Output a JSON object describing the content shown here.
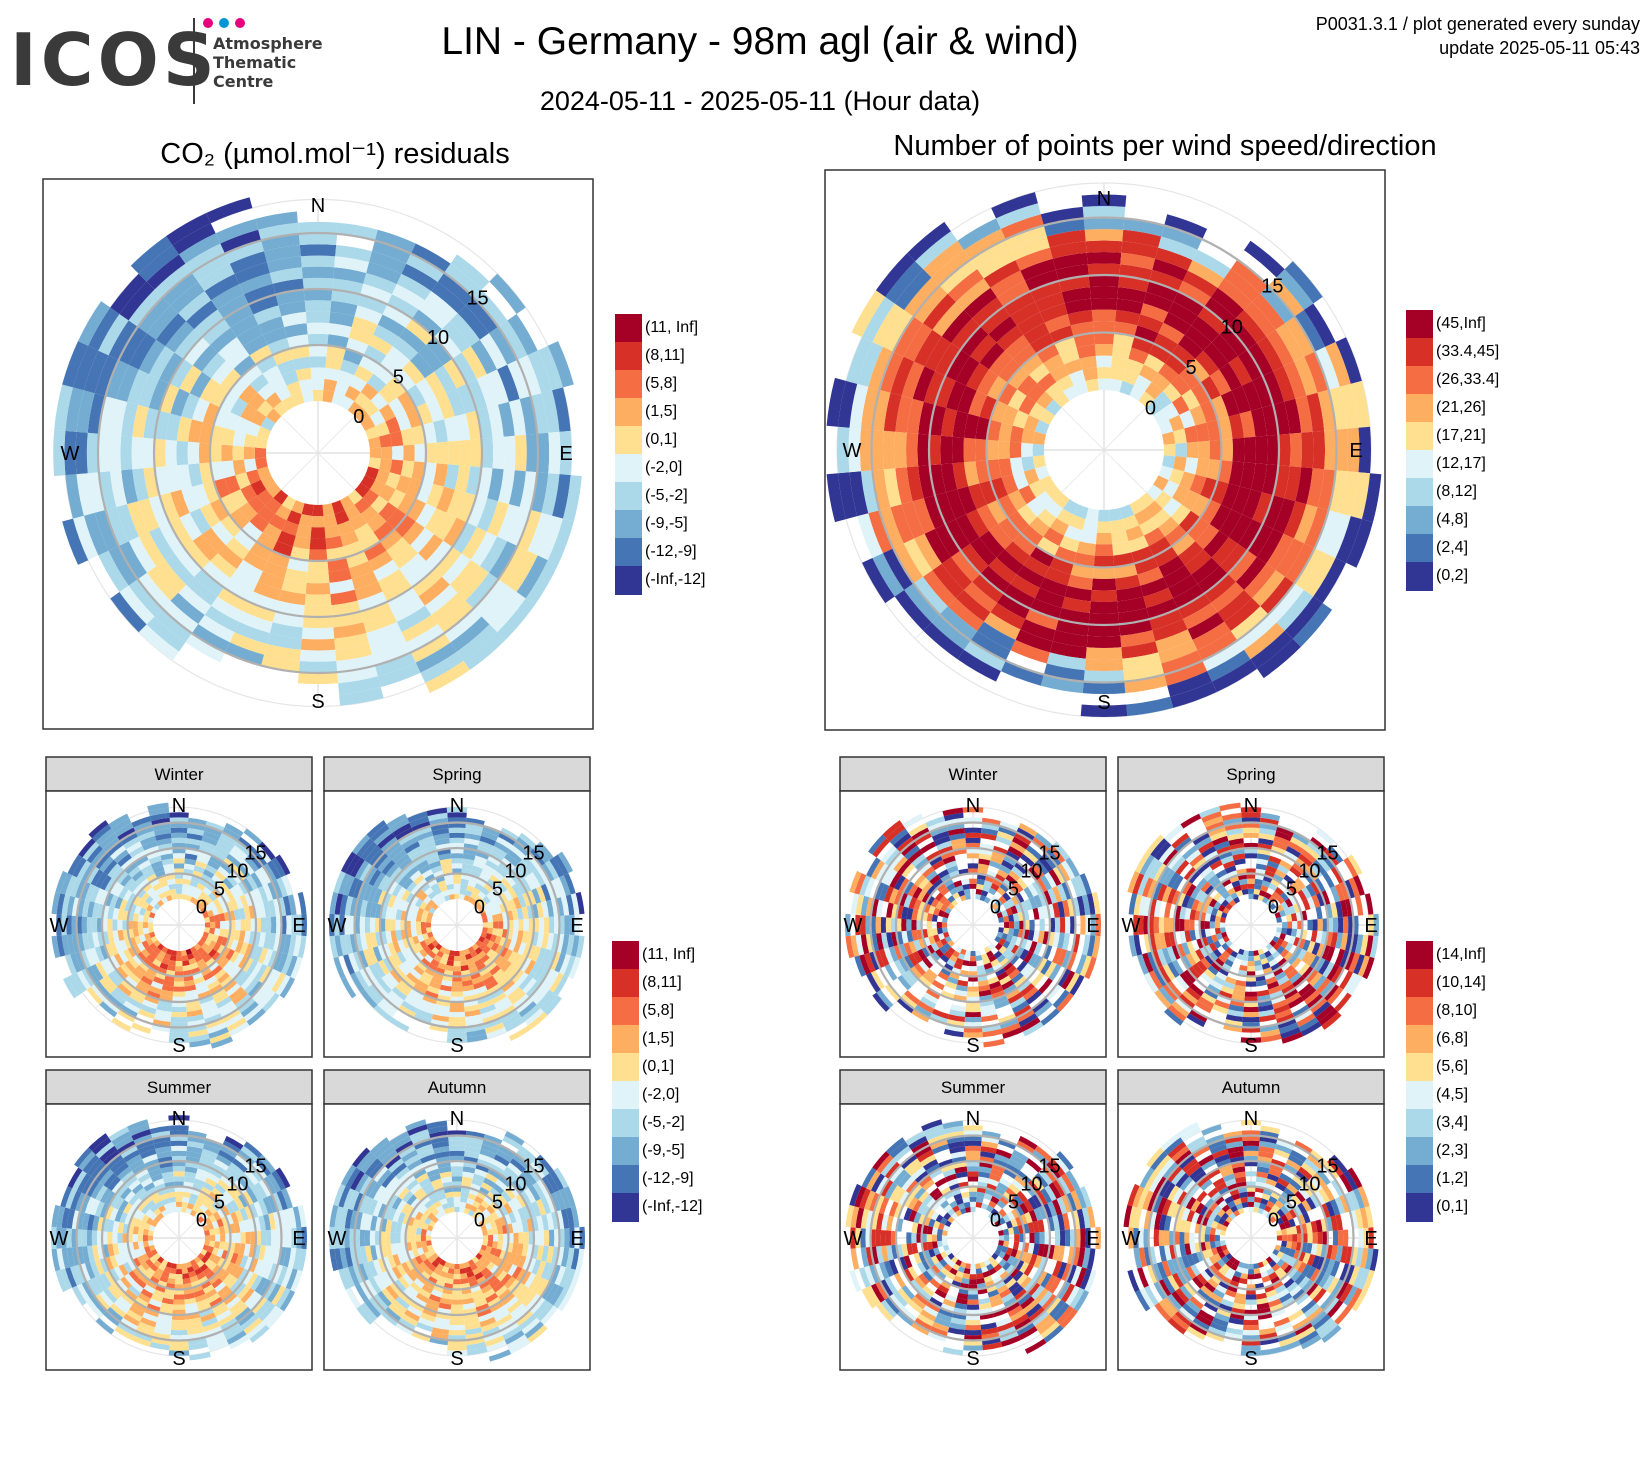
{
  "header": {
    "logo_word": "ICOS",
    "logo_lines": [
      "Atmosphere",
      "Thematic",
      "Centre"
    ],
    "title": "LIN - Germany - 98m agl (air & wind)",
    "subtitle": "2024-05-11 - 2025-05-11 (Hour data)",
    "corner_line1": "P0031.3.1 / plot generated every sunday",
    "corner_line2": "update  2025-05-11 05:43"
  },
  "panels": {
    "left_title": "CO₂ (µmol.mol⁻¹) residuals",
    "right_title": "Number of points per wind speed/direction"
  },
  "colors": {
    "scale": [
      "#a50026",
      "#d73027",
      "#f46d43",
      "#fdae61",
      "#fee090",
      "#e0f3f8",
      "#abd9e9",
      "#74add1",
      "#4575b4",
      "#313695"
    ],
    "grid": "#b0b0b0",
    "strip_bg": "#d9d9d9"
  },
  "chart_data": [
    {
      "id": "co2-residuals-all",
      "type": "heatmap",
      "subtype": "polar wind rose",
      "title": "CO₂ (µmol.mol⁻¹) residuals",
      "compass": [
        "N",
        "E",
        "S",
        "W"
      ],
      "radial_ticks": [
        0,
        5,
        10,
        15
      ],
      "radial_range": [
        0,
        15
      ],
      "legend": [
        "(11, Inf]",
        "(8,11]",
        "(5,8]",
        "(1,5]",
        "(0,1]",
        "(-2,0]",
        "(-5,-2]",
        "(-9,-5]",
        "(-12,-9]",
        "(-Inf,-12]"
      ]
    },
    {
      "id": "points-per-wind-all",
      "type": "heatmap",
      "subtype": "polar wind rose",
      "title": "Number of points per wind speed/direction",
      "compass": [
        "N",
        "E",
        "S",
        "W"
      ],
      "radial_ticks": [
        0,
        5,
        10,
        15
      ],
      "radial_range": [
        0,
        15
      ],
      "legend": [
        "(45,Inf]",
        "(33.4,45]",
        "(26,33.4]",
        "(21,26]",
        "(17,21]",
        "(12,17]",
        "(8,12]",
        "(4,8]",
        "(2,4]",
        "(0,2]"
      ]
    },
    {
      "id": "co2-residuals-seasonal",
      "type": "heatmap",
      "subtype": "polar wind rose facets",
      "facets": [
        "Winter",
        "Spring",
        "Summer",
        "Autumn"
      ],
      "compass": [
        "N",
        "E",
        "S",
        "W"
      ],
      "radial_ticks": [
        0,
        5,
        10,
        15
      ],
      "legend": [
        "(11, Inf]",
        "(8,11]",
        "(5,8]",
        "(1,5]",
        "(0,1]",
        "(-2,0]",
        "(-5,-2]",
        "(-9,-5]",
        "(-12,-9]",
        "(-Inf,-12]"
      ]
    },
    {
      "id": "points-per-wind-seasonal",
      "type": "heatmap",
      "subtype": "polar wind rose facets",
      "facets": [
        "Winter",
        "Spring",
        "Summer",
        "Autumn"
      ],
      "compass": [
        "N",
        "E",
        "S",
        "W"
      ],
      "radial_ticks": [
        0,
        5,
        10,
        15
      ],
      "legend": [
        "(14,Inf]",
        "(10,14]",
        "(8,10]",
        "(6,8]",
        "(5,6]",
        "(4,5]",
        "(3,4]",
        "(2,3]",
        "(1,2]",
        "(0,1]"
      ]
    }
  ]
}
